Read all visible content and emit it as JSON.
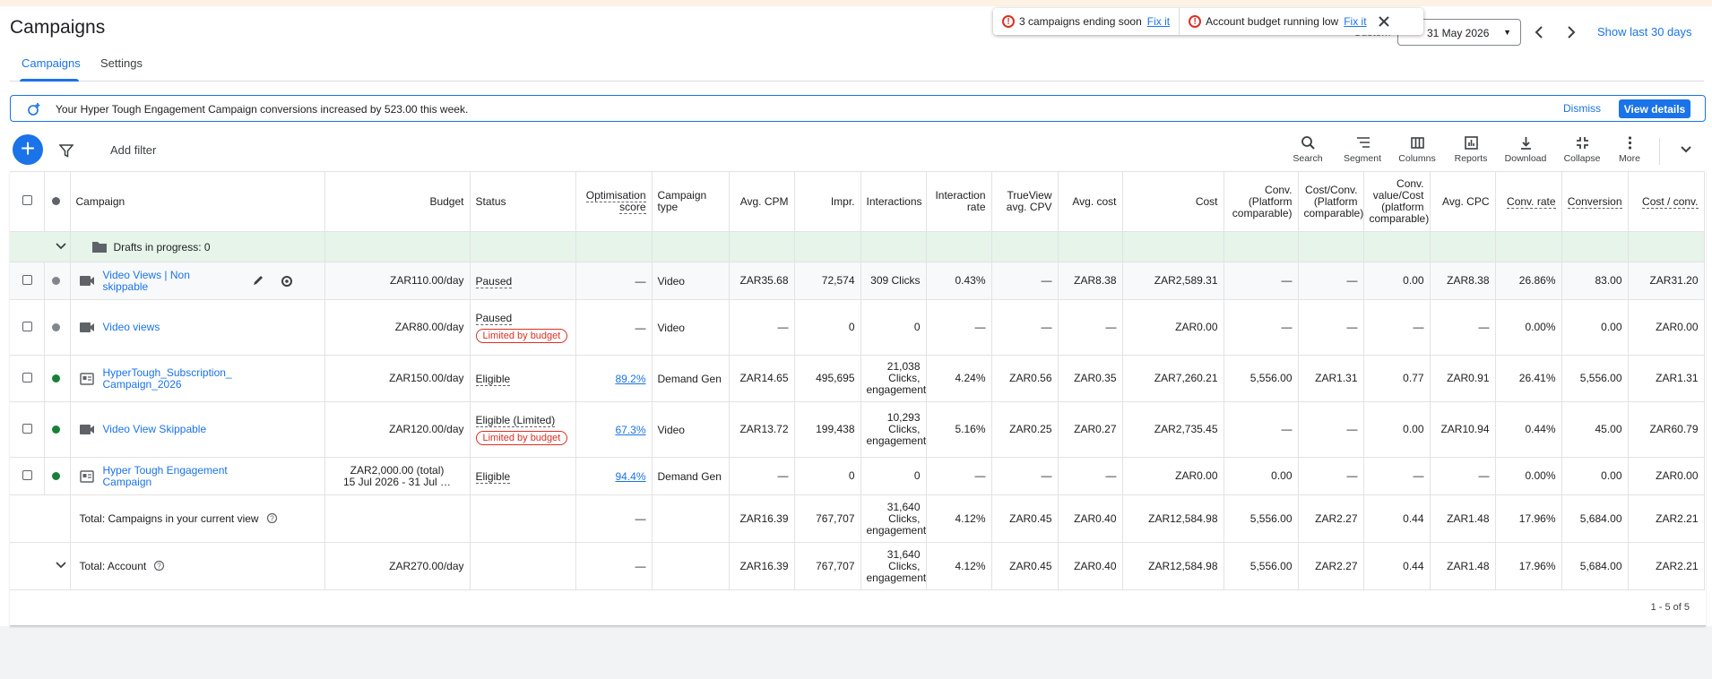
{
  "header": {
    "title": "Campaigns",
    "tabs": [
      "Campaigns",
      "Settings"
    ],
    "date_label": "Custom",
    "date_range": "31 May 2026",
    "show_last": "Show last 30 days"
  },
  "notifications": [
    {
      "text": "3 campaigns ending soon",
      "link": "Fix it"
    },
    {
      "text": "Account budget running low",
      "link": "Fix it"
    }
  ],
  "banner": {
    "text": "Your Hyper Tough Engagement Campaign conversions increased by 523.00 this week.",
    "dismiss": "Dismiss",
    "action": "View details"
  },
  "toolbar": {
    "add_filter": "Add filter",
    "tools": [
      "Search",
      "Segment",
      "Columns",
      "Reports",
      "Download",
      "Collapse",
      "More"
    ]
  },
  "table": {
    "columns": [
      "Campaign",
      "Budget",
      "Status",
      "Optimisation score",
      "Campaign type",
      "Avg. CPM",
      "Impr.",
      "Interactions",
      "Interaction rate",
      "TrueView avg. CPV",
      "Avg. cost",
      "Cost",
      "Conv. (Platform comparable)",
      "Cost/Conv. (Platform comparable)",
      "Conv. value/Cost (platform comparable)",
      "Avg. CPC",
      "Conv. rate",
      "Conversion",
      "Cost / conv."
    ],
    "drafts": "Drafts in progress: 0",
    "rows": [
      {
        "dot_color": "#80868b",
        "icon": "video",
        "campaign": "Video Views | Non skippable",
        "budget": "ZAR110.00/day",
        "status": "Paused",
        "score": "—",
        "type": "Video",
        "metrics": [
          "ZAR35.68",
          "72,574",
          "309 Clicks",
          "0.43%",
          "—",
          "ZAR8.38",
          "ZAR2,589.31",
          "—",
          "—",
          "0.00",
          "ZAR8.38",
          "26.86%",
          "83.00",
          "ZAR31.20"
        ]
      },
      {
        "dot_color": "#80868b",
        "icon": "video",
        "campaign": "Video views",
        "budget": "ZAR80.00/day",
        "status": "Paused",
        "badge": "Limited by budget",
        "score": "—",
        "type": "Video",
        "metrics": [
          "—",
          "0",
          "0",
          "—",
          "—",
          "—",
          "ZAR0.00",
          "—",
          "—",
          "—",
          "—",
          "0.00%",
          "0.00",
          "ZAR0.00"
        ]
      },
      {
        "dot_color": "#188038",
        "icon": "display",
        "campaign": "HyperTough_Subscription_Campaign_2026",
        "budget": "ZAR150.00/day",
        "status": "Eligible",
        "score": "89.2%",
        "type": "Demand Gen",
        "metrics": [
          "ZAR14.65",
          "495,695",
          "21,038 Clicks, engagements",
          "4.24%",
          "ZAR0.56",
          "ZAR0.35",
          "ZAR7,260.21",
          "5,556.00",
          "ZAR1.31",
          "0.77",
          "ZAR0.91",
          "26.41%",
          "5,556.00",
          "ZAR1.31"
        ]
      },
      {
        "dot_color": "#188038",
        "icon": "video",
        "campaign": "Video View Skippable",
        "budget": "ZAR120.00/day",
        "status": "Eligible (Limited)",
        "badge": "Limited by budget",
        "score": "67.3%",
        "type": "Video",
        "metrics": [
          "ZAR13.72",
          "199,438",
          "10,293 Clicks, engagements",
          "5.16%",
          "ZAR0.25",
          "ZAR0.27",
          "ZAR2,735.45",
          "—",
          "—",
          "0.00",
          "ZAR10.94",
          "0.44%",
          "45.00",
          "ZAR60.79"
        ]
      },
      {
        "dot_color": "#188038",
        "icon": "display",
        "campaign": "Hyper Tough Engagement Campaign",
        "budget": "ZAR2,000.00 (total)",
        "budget_dates": "15 Jul 2026 - 31 Jul …",
        "status": "Eligible",
        "score": "94.4%",
        "type": "Demand Gen",
        "metrics": [
          "—",
          "0",
          "0",
          "—",
          "—",
          "—",
          "ZAR0.00",
          "0.00",
          "—",
          "—",
          "—",
          "0.00%",
          "0.00",
          "ZAR0.00"
        ]
      }
    ],
    "totals": [
      {
        "label": "Total: Campaigns in your current view",
        "score": "—",
        "metrics": [
          "ZAR16.39",
          "767,707",
          "31,640 Clicks, engagements",
          "4.12%",
          "ZAR0.45",
          "ZAR0.40",
          "ZAR12,584.98",
          "5,556.00",
          "ZAR2.27",
          "0.44",
          "ZAR1.48",
          "17.96%",
          "5,684.00",
          "ZAR2.21"
        ]
      },
      {
        "label": "Total: Account",
        "budget": "ZAR270.00/day",
        "score": "—",
        "metrics": [
          "ZAR16.39",
          "767,707",
          "31,640 Clicks, engagements",
          "4.12%",
          "ZAR0.45",
          "ZAR0.40",
          "ZAR12,584.98",
          "5,556.00",
          "ZAR2.27",
          "0.44",
          "ZAR1.48",
          "17.96%",
          "5,684.00",
          "ZAR2.21"
        ]
      }
    ],
    "pagination": "1 - 5 of 5"
  }
}
